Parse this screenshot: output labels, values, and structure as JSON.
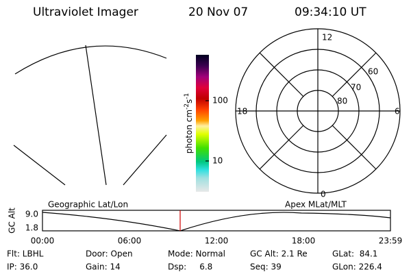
{
  "header": {
    "instrument": "Ultraviolet Imager",
    "date": "20 Nov 07",
    "time": "09:34:10 UT"
  },
  "colorbar": {
    "ticks": [
      "100",
      "10"
    ],
    "unit": {
      "base": "photon cm",
      "exp1": "-2",
      "mid": "s",
      "exp2": "-1"
    }
  },
  "polar": {
    "mlt_labels": {
      "top": "12",
      "right": "6",
      "bottom": "0",
      "left": "18"
    },
    "lat_labels": [
      "60",
      "70",
      "80"
    ]
  },
  "timeline": {
    "y_label": "GC Alt",
    "y_ticks": [
      "9.0",
      "1.8"
    ],
    "x_ticks": [
      "00:00",
      "06:00",
      "12:00",
      "18:00",
      "23:59"
    ],
    "left_caption": "Geographic Lat/Lon",
    "right_caption": "Apex MLat/MLT"
  },
  "info": {
    "rows": [
      [
        "Flt: LBHL",
        "Door: Open",
        "Mode: Normal",
        "GC Alt: 2.1 Re",
        "GLat:  84.1"
      ],
      [
        "IP: 36.0",
        "Gain: 14",
        "Dsp:     6.8",
        "Seq: 39",
        "GLon: 226.4"
      ]
    ]
  }
}
